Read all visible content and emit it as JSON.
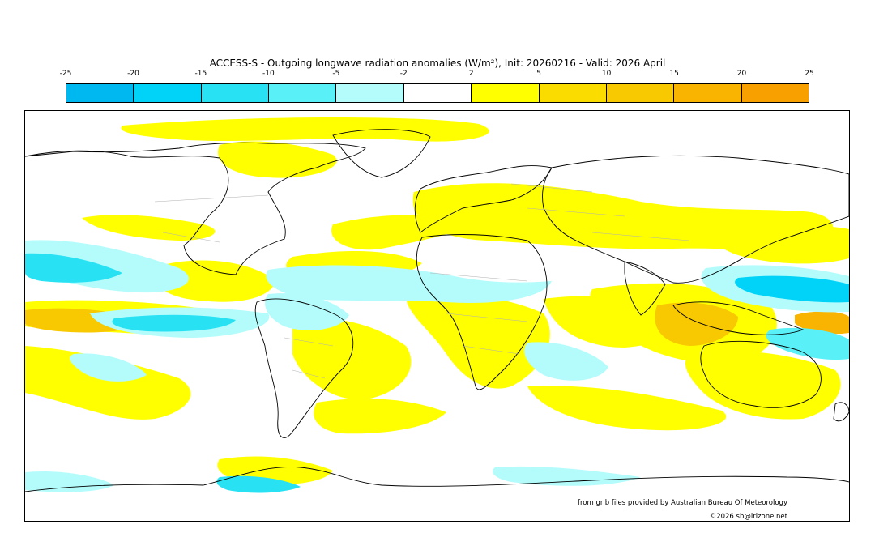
{
  "title": "ACCESS-S - Outgoing longwave radiation anomalies (W/m²), Init: 20260216 - Valid: 2026 April",
  "colorbar": {
    "ticks": [
      "-25",
      "-20",
      "-15",
      "-10",
      "-5",
      "-2",
      "2",
      "5",
      "10",
      "15",
      "20",
      "25"
    ],
    "colors": [
      "#00b8f0",
      "#00d2f8",
      "#28e2f4",
      "#5af0f8",
      "#b4fcfc",
      "#ffffff",
      "#ffff00",
      "#fbdc00",
      "#f8c800",
      "#f8b400",
      "#f8a000"
    ]
  },
  "credit": "from grib files provided by Australian Bureau Of Meteorology",
  "copyright": "©2026 sb@irizone.net"
}
